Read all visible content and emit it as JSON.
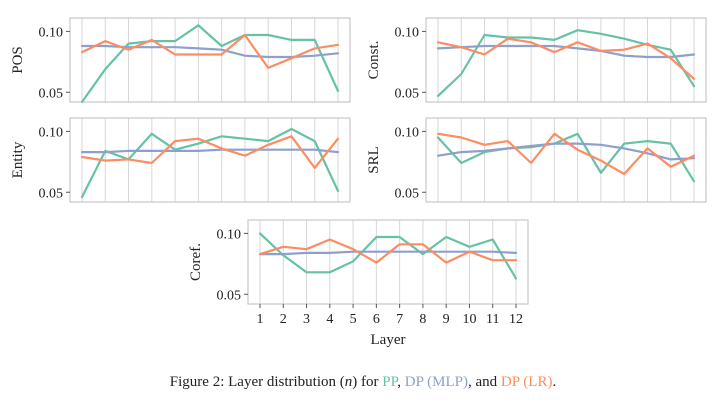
{
  "chart_data": [
    {
      "type": "line",
      "ylabel": "POS",
      "x": [
        1,
        2,
        3,
        4,
        5,
        6,
        7,
        8,
        9,
        10,
        11,
        12
      ],
      "ylim": [
        0.042,
        0.111
      ],
      "yticks": [
        0.05,
        0.1
      ],
      "yticklabels": [
        "0.05",
        "0.10"
      ],
      "series": [
        {
          "name": "PP",
          "color": "#66c2a5",
          "values": [
            0.042,
            0.069,
            0.09,
            0.092,
            0.092,
            0.105,
            0.088,
            0.097,
            0.097,
            0.093,
            0.093,
            0.051
          ]
        },
        {
          "name": "DP (MLP)",
          "color": "#8da0cb",
          "values": [
            0.088,
            0.088,
            0.087,
            0.087,
            0.087,
            0.086,
            0.085,
            0.08,
            0.079,
            0.079,
            0.08,
            0.082
          ]
        },
        {
          "name": "DP (LR)",
          "color": "#fc8d62",
          "values": [
            0.083,
            0.092,
            0.085,
            0.093,
            0.081,
            0.081,
            0.081,
            0.097,
            0.07,
            0.078,
            0.086,
            0.089
          ]
        }
      ]
    },
    {
      "type": "line",
      "ylabel": "Const.",
      "x": [
        1,
        2,
        3,
        4,
        5,
        6,
        7,
        8,
        9,
        10,
        11,
        12
      ],
      "ylim": [
        0.042,
        0.111
      ],
      "yticks": [
        0.05,
        0.1
      ],
      "yticklabels": [
        "0.05",
        "0.10"
      ],
      "series": [
        {
          "name": "PP",
          "color": "#66c2a5",
          "values": [
            0.047,
            0.065,
            0.097,
            0.095,
            0.095,
            0.093,
            0.101,
            0.098,
            0.094,
            0.089,
            0.085,
            0.055
          ]
        },
        {
          "name": "DP (MLP)",
          "color": "#8da0cb",
          "values": [
            0.086,
            0.087,
            0.088,
            0.088,
            0.088,
            0.088,
            0.086,
            0.084,
            0.08,
            0.079,
            0.079,
            0.081
          ]
        },
        {
          "name": "DP (LR)",
          "color": "#fc8d62",
          "values": [
            0.091,
            0.087,
            0.081,
            0.094,
            0.091,
            0.083,
            0.091,
            0.084,
            0.085,
            0.09,
            0.078,
            0.061
          ]
        }
      ]
    },
    {
      "type": "line",
      "ylabel": "Entity",
      "x": [
        1,
        2,
        3,
        4,
        5,
        6,
        7,
        8,
        9,
        10,
        11,
        12
      ],
      "ylim": [
        0.042,
        0.111
      ],
      "yticks": [
        0.05,
        0.1
      ],
      "yticklabels": [
        "0.05",
        "0.10"
      ],
      "series": [
        {
          "name": "PP",
          "color": "#66c2a5",
          "values": [
            0.046,
            0.084,
            0.077,
            0.098,
            0.085,
            0.09,
            0.096,
            0.094,
            0.092,
            0.102,
            0.092,
            0.051
          ]
        },
        {
          "name": "DP (MLP)",
          "color": "#8da0cb",
          "values": [
            0.083,
            0.083,
            0.084,
            0.084,
            0.084,
            0.084,
            0.085,
            0.085,
            0.085,
            0.085,
            0.085,
            0.083
          ]
        },
        {
          "name": "DP (LR)",
          "color": "#fc8d62",
          "values": [
            0.079,
            0.076,
            0.077,
            0.074,
            0.092,
            0.094,
            0.086,
            0.08,
            0.089,
            0.096,
            0.07,
            0.094
          ]
        }
      ]
    },
    {
      "type": "line",
      "ylabel": "SRL",
      "x": [
        1,
        2,
        3,
        4,
        5,
        6,
        7,
        8,
        9,
        10,
        11,
        12
      ],
      "ylim": [
        0.042,
        0.111
      ],
      "yticks": [
        0.05,
        0.1
      ],
      "yticklabels": [
        "0.05",
        "0.10"
      ],
      "series": [
        {
          "name": "PP",
          "color": "#66c2a5",
          "values": [
            0.095,
            0.074,
            0.083,
            0.086,
            0.087,
            0.09,
            0.098,
            0.066,
            0.09,
            0.092,
            0.09,
            0.059
          ]
        },
        {
          "name": "DP (MLP)",
          "color": "#8da0cb",
          "values": [
            0.08,
            0.083,
            0.084,
            0.086,
            0.088,
            0.09,
            0.09,
            0.089,
            0.086,
            0.082,
            0.077,
            0.078
          ]
        },
        {
          "name": "DP (LR)",
          "color": "#fc8d62",
          "values": [
            0.098,
            0.095,
            0.089,
            0.092,
            0.074,
            0.098,
            0.085,
            0.076,
            0.065,
            0.086,
            0.071,
            0.08
          ]
        }
      ]
    },
    {
      "type": "line",
      "ylabel": "Coref.",
      "x": [
        1,
        2,
        3,
        4,
        5,
        6,
        7,
        8,
        9,
        10,
        11,
        12
      ],
      "xticklabels": [
        "1",
        "2",
        "3",
        "4",
        "5",
        "6",
        "7",
        "8",
        "9",
        "10",
        "11",
        "12"
      ],
      "xlabel": "Layer",
      "ylim": [
        0.042,
        0.111
      ],
      "yticks": [
        0.05,
        0.1
      ],
      "yticklabels": [
        "0.05",
        "0.10"
      ],
      "series": [
        {
          "name": "PP",
          "color": "#66c2a5",
          "values": [
            0.1,
            0.082,
            0.068,
            0.068,
            0.077,
            0.097,
            0.097,
            0.083,
            0.097,
            0.089,
            0.095,
            0.063
          ]
        },
        {
          "name": "DP (MLP)",
          "color": "#8da0cb",
          "values": [
            0.083,
            0.083,
            0.084,
            0.084,
            0.085,
            0.085,
            0.085,
            0.085,
            0.085,
            0.085,
            0.085,
            0.084
          ]
        },
        {
          "name": "DP (LR)",
          "color": "#fc8d62",
          "values": [
            0.083,
            0.089,
            0.087,
            0.095,
            0.087,
            0.076,
            0.091,
            0.091,
            0.076,
            0.085,
            0.078,
            0.078
          ]
        }
      ]
    }
  ],
  "caption": {
    "prefix": "Figure 2: Layer distribution (",
    "var": "n",
    "mid": ") for ",
    "pp": "PP",
    "sep1": ", ",
    "mlp": "DP (MLP)",
    "sep2": ", and ",
    "lr": "DP (LR)",
    "end": "."
  }
}
